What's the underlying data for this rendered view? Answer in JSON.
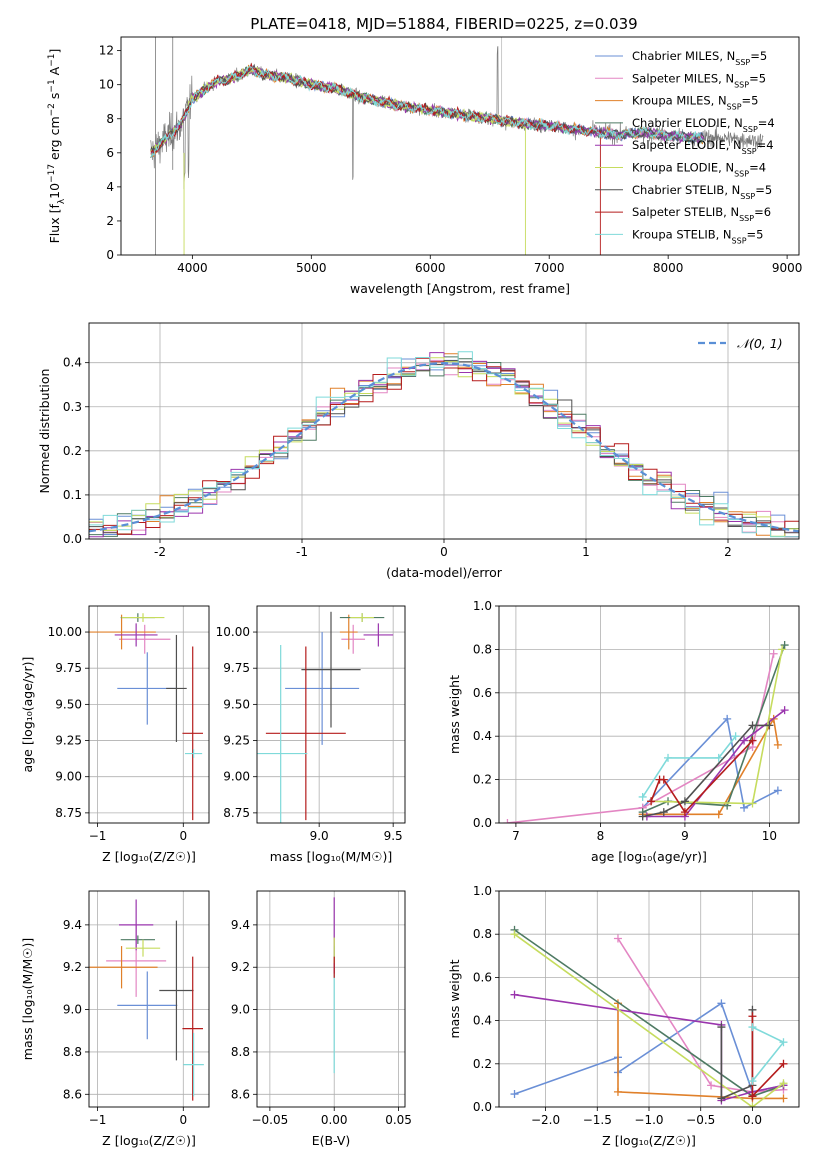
{
  "title": "PLATE=0418, MJD=51884, FIBERID=0225, z=0.039",
  "series": [
    {
      "name": "Chabrier MILES",
      "nssp": "5",
      "color": "#6a8fd6"
    },
    {
      "name": "Salpeter MILES",
      "nssp": "5",
      "color": "#e386c3"
    },
    {
      "name": "Kroupa MILES",
      "nssp": "5",
      "color": "#e0802a"
    },
    {
      "name": "Chabrier ELODIE",
      "nssp": "4",
      "color": "#4e7a63"
    },
    {
      "name": "Salpeter ELODIE",
      "nssp": "4",
      "color": "#9a35ad"
    },
    {
      "name": "Kroupa ELODIE",
      "nssp": "4",
      "color": "#c6dc5e"
    },
    {
      "name": "Chabrier STELIB",
      "nssp": "5",
      "color": "#505050"
    },
    {
      "name": "Salpeter STELIB",
      "nssp": "6",
      "color": "#b51c1c"
    },
    {
      "name": "Kroupa STELIB",
      "nssp": "5",
      "color": "#7fdada"
    }
  ],
  "chart_data": [
    {
      "id": "spectrum",
      "type": "line",
      "xlabel": "wavelength [Angstrom, rest frame]",
      "ylabel_parts": [
        "Flux [f",
        "λ",
        "10",
        "−17",
        " erg cm",
        "−2",
        " s",
        "−1",
        " A",
        "−1",
        "]"
      ],
      "xlim": [
        3400,
        9100
      ],
      "ylim": [
        0,
        12.8
      ],
      "xticks": [
        4000,
        5000,
        6000,
        7000,
        8000,
        9000
      ],
      "yticks": [
        0,
        2,
        4,
        6,
        8,
        10,
        12
      ],
      "data_x": [
        3650,
        3700,
        3800,
        3900,
        4000,
        4100,
        4200,
        4300,
        4400,
        4500,
        4600,
        4800,
        5000,
        5200,
        5400,
        5600,
        5800,
        6000,
        6200,
        6400,
        6600,
        6800,
        7000,
        7200,
        7400,
        7600,
        7800,
        8000,
        8200,
        8400,
        8600,
        8800
      ],
      "data_y": [
        6.0,
        6.3,
        7.0,
        7.6,
        9.2,
        9.7,
        10.2,
        10.3,
        10.6,
        10.9,
        10.6,
        10.4,
        10.0,
        9.8,
        9.3,
        9.0,
        8.7,
        8.5,
        8.3,
        8.1,
        7.9,
        7.7,
        7.6,
        7.4,
        7.2,
        7.05,
        7.2,
        7.0,
        6.9,
        6.9,
        6.8,
        6.7
      ],
      "model_extent": [
        3650,
        8300
      ],
      "grid": false,
      "legend": "top-right"
    },
    {
      "id": "residuals",
      "type": "histogram",
      "xlabel": "(data-model)/error",
      "ylabel": "Normed distribution",
      "xlim": [
        -2.5,
        2.5
      ],
      "ylim": [
        0,
        0.49
      ],
      "xticks": [
        -2,
        -1,
        0,
        1,
        2
      ],
      "yticks": [
        0.0,
        0.1,
        0.2,
        0.3,
        0.4
      ],
      "bin_width": 0.1,
      "reference_label": "𝒩(0, 1)",
      "reference_color": "#5a8fd6",
      "grid": true,
      "legend": "top-right"
    },
    {
      "id": "age_vs_z",
      "type": "errorbar",
      "xlabel": "Z [log₁₀(Z/Z☉)]",
      "ylabel": "age  [log₁₀(age/yr)]",
      "xlim": [
        -1.1,
        0.3
      ],
      "ylim": [
        8.68,
        10.18
      ],
      "xticks": [
        -1,
        0
      ],
      "xticklabels": [
        "−1",
        "0"
      ],
      "yticks": [
        8.75,
        9.0,
        9.25,
        9.5,
        9.75,
        10.0
      ],
      "points": [
        {
          "c": 0,
          "x": -0.42,
          "y": 9.61,
          "dx": 0.35,
          "dy": 0.25
        },
        {
          "c": 1,
          "x": -0.45,
          "y": 9.95,
          "dx": 0.3,
          "dy": 0.1
        },
        {
          "c": 2,
          "x": -0.72,
          "y": 10.0,
          "dx": 0.4,
          "dy": 0.12
        },
        {
          "c": 3,
          "x": -0.53,
          "y": 10.1,
          "dx": 0.2,
          "dy": 0.03
        },
        {
          "c": 4,
          "x": -0.55,
          "y": 9.98,
          "dx": 0.25,
          "dy": 0.08
        },
        {
          "c": 5,
          "x": -0.47,
          "y": 10.1,
          "dx": 0.25,
          "dy": 0.03
        },
        {
          "c": 6,
          "x": -0.08,
          "y": 9.61,
          "dx": 0.12,
          "dy": 0.37
        },
        {
          "c": 7,
          "x": 0.11,
          "y": 9.3,
          "dx": 0.12,
          "dy": 0.6
        },
        {
          "c": 8,
          "x": 0.12,
          "y": 9.16,
          "dx": 0.1,
          "dy": 0.03
        }
      ],
      "grid": true
    },
    {
      "id": "age_vs_mass",
      "type": "errorbar",
      "xlabel": "mass [log₁₀(M/M☉)]",
      "ylabel": "",
      "xlim": [
        8.58,
        9.58
      ],
      "ylim": [
        8.68,
        10.18
      ],
      "xticks": [
        9.0,
        9.5
      ],
      "xticklabels": [
        "9.0",
        "9.5"
      ],
      "yticks": [
        8.75,
        9.0,
        9.25,
        9.5,
        9.75,
        10.0
      ],
      "points": [
        {
          "c": 0,
          "x": 9.02,
          "y": 9.61,
          "dx": 0.25,
          "dy": 0.39
        },
        {
          "c": 1,
          "x": 9.23,
          "y": 9.95,
          "dx": 0.08,
          "dy": 0.1
        },
        {
          "c": 2,
          "x": 9.2,
          "y": 10.0,
          "dx": 0.06,
          "dy": 0.12
        },
        {
          "c": 3,
          "x": 9.29,
          "y": 10.1,
          "dx": 0.15,
          "dy": 0.03
        },
        {
          "c": 4,
          "x": 9.4,
          "y": 9.98,
          "dx": 0.1,
          "dy": 0.08
        },
        {
          "c": 5,
          "x": 9.29,
          "y": 10.1,
          "dx": 0.08,
          "dy": 0.03
        },
        {
          "c": 6,
          "x": 9.08,
          "y": 9.74,
          "dx": 0.2,
          "dy": 0.4
        },
        {
          "c": 7,
          "x": 8.91,
          "y": 9.3,
          "dx": 0.27,
          "dy": 0.6
        },
        {
          "c": 8,
          "x": 8.74,
          "y": 9.16,
          "dx": 0.18,
          "dy": 0.75
        }
      ],
      "grid": true
    },
    {
      "id": "weight_vs_age",
      "type": "line",
      "xlabel": "age  [log₁₀(age/yr)]",
      "ylabel": "mass weight",
      "xlim": [
        6.8,
        10.35
      ],
      "ylim": [
        0,
        1.0
      ],
      "xticks": [
        7,
        8,
        9,
        10
      ],
      "yticks": [
        0.0,
        0.2,
        0.4,
        0.6,
        0.8,
        1.0
      ],
      "lines": [
        {
          "c": 0,
          "pts": [
            [
              8.5,
              0.07
            ],
            [
              9.5,
              0.48
            ],
            [
              9.7,
              0.07
            ],
            [
              10.1,
              0.15
            ]
          ]
        },
        {
          "c": 1,
          "pts": [
            [
              6.9,
              0.0
            ],
            [
              8.5,
              0.07
            ],
            [
              9.8,
              0.35
            ],
            [
              10.05,
              0.78
            ]
          ]
        },
        {
          "c": 2,
          "pts": [
            [
              8.5,
              0.04
            ],
            [
              9.4,
              0.04
            ],
            [
              10.05,
              0.48
            ],
            [
              10.1,
              0.36
            ]
          ]
        },
        {
          "c": 3,
          "pts": [
            [
              8.5,
              0.05
            ],
            [
              8.8,
              0.1
            ],
            [
              9.5,
              0.08
            ],
            [
              10.18,
              0.82
            ]
          ]
        },
        {
          "c": 4,
          "pts": [
            [
              8.55,
              0.03
            ],
            [
              9.0,
              0.03
            ],
            [
              9.7,
              0.38
            ],
            [
              10.18,
              0.52
            ]
          ]
        },
        {
          "c": 5,
          "pts": [
            [
              8.6,
              0.1
            ],
            [
              9.8,
              0.09
            ],
            [
              10.15,
              0.8
            ]
          ]
        },
        {
          "c": 6,
          "pts": [
            [
              8.5,
              0.03
            ],
            [
              8.75,
              0.05
            ],
            [
              9.0,
              0.1
            ],
            [
              9.8,
              0.45
            ],
            [
              10.0,
              0.45
            ]
          ]
        },
        {
          "c": 7,
          "pts": [
            [
              8.6,
              0.1
            ],
            [
              8.7,
              0.2
            ],
            [
              8.75,
              0.2
            ],
            [
              9.0,
              0.05
            ],
            [
              9.8,
              0.38
            ]
          ]
        },
        {
          "c": 8,
          "pts": [
            [
              8.5,
              0.12
            ],
            [
              8.8,
              0.3
            ],
            [
              9.4,
              0.3
            ],
            [
              9.6,
              0.4
            ]
          ]
        }
      ],
      "grid": true
    },
    {
      "id": "mass_vs_z",
      "type": "errorbar",
      "xlabel": "Z [log₁₀(Z/Z☉)]",
      "ylabel": "mass [log₁₀(M/M☉)]",
      "xlim": [
        -1.1,
        0.3
      ],
      "ylim": [
        8.54,
        9.56
      ],
      "xticks": [
        -1,
        0
      ],
      "xticklabels": [
        "−1",
        "0"
      ],
      "yticks": [
        8.6,
        8.8,
        9.0,
        9.2,
        9.4
      ],
      "points": [
        {
          "c": 0,
          "x": -0.42,
          "y": 9.02,
          "dx": 0.35,
          "dy": 0.16
        },
        {
          "c": 1,
          "x": -0.55,
          "y": 9.23,
          "dx": 0.35,
          "dy": 0.17
        },
        {
          "c": 2,
          "x": -0.72,
          "y": 9.2,
          "dx": 0.42,
          "dy": 0.1
        },
        {
          "c": 3,
          "x": -0.53,
          "y": 9.33,
          "dx": 0.2,
          "dy": 0.02
        },
        {
          "c": 4,
          "x": -0.55,
          "y": 9.4,
          "dx": 0.2,
          "dy": 0.12
        },
        {
          "c": 5,
          "x": -0.47,
          "y": 9.29,
          "dx": 0.2,
          "dy": 0.04
        },
        {
          "c": 6,
          "x": -0.08,
          "y": 9.09,
          "dx": 0.2,
          "dy": 0.33
        },
        {
          "c": 7,
          "x": 0.11,
          "y": 8.91,
          "dx": 0.12,
          "dy": 0.34
        },
        {
          "c": 8,
          "x": 0.12,
          "y": 8.74,
          "dx": 0.12,
          "dy": 0.15
        }
      ],
      "grid": true
    },
    {
      "id": "mass_vs_ebv",
      "type": "errorbar",
      "xlabel": "E(B-V)",
      "ylabel": "",
      "xlim": [
        -0.06,
        0.055
      ],
      "ylim": [
        8.54,
        9.56
      ],
      "xticks": [
        -0.05,
        0.0,
        0.05
      ],
      "xticklabels": [
        "−0.05",
        "0.00",
        "0.05"
      ],
      "yticks": [
        8.6,
        8.8,
        9.0,
        9.2,
        9.4
      ],
      "points": [
        {
          "c": 8,
          "x": 0.0,
          "y": 9.0,
          "dx": 0.0,
          "dy": 0.3
        },
        {
          "c": 4,
          "x": 0.0,
          "y": 9.35,
          "dx": 0.0,
          "dy": 0.18
        },
        {
          "c": 5,
          "x": 0.0,
          "y": 9.28,
          "dx": 0.0,
          "dy": 0.06
        },
        {
          "c": 7,
          "x": 0.0,
          "y": 9.2,
          "dx": 0.0,
          "dy": 0.05
        }
      ],
      "grid": true
    },
    {
      "id": "weight_vs_z",
      "type": "line",
      "xlabel": "Z [log₁₀(Z/Z☉)]",
      "ylabel": "mass weight",
      "xlim": [
        -2.45,
        0.45
      ],
      "ylim": [
        0,
        1.0
      ],
      "xticks": [
        -2.0,
        -1.5,
        -1.0,
        -0.5,
        0.0
      ],
      "xticklabels": [
        "−2.0",
        "−1.5",
        "−1.0",
        "−0.5",
        "0.0"
      ],
      "yticks": [
        0.0,
        0.2,
        0.4,
        0.6,
        0.8,
        1.0
      ],
      "lines": [
        {
          "c": 0,
          "pts": [
            [
              -2.3,
              0.06
            ],
            [
              -1.3,
              0.23
            ],
            [
              -1.3,
              0.16
            ],
            [
              -0.3,
              0.48
            ],
            [
              0.0,
              0.07
            ],
            [
              0.3,
              0.1
            ]
          ]
        },
        {
          "c": 1,
          "pts": [
            [
              -1.3,
              0.78
            ],
            [
              -0.4,
              0.1
            ],
            [
              0.0,
              0.07
            ],
            [
              0.3,
              0.08
            ]
          ]
        },
        {
          "c": 2,
          "pts": [
            [
              -1.3,
              0.48
            ],
            [
              -1.3,
              0.07
            ],
            [
              0.0,
              0.04
            ],
            [
              0.3,
              0.04
            ]
          ]
        },
        {
          "c": 3,
          "pts": [
            [
              -2.3,
              0.82
            ],
            [
              0.0,
              0.05
            ],
            [
              0.3,
              0.1
            ]
          ]
        },
        {
          "c": 4,
          "pts": [
            [
              -2.3,
              0.52
            ],
            [
              -0.3,
              0.38
            ],
            [
              -0.3,
              0.03
            ],
            [
              0.0,
              0.07
            ],
            [
              0.3,
              0.1
            ]
          ]
        },
        {
          "c": 5,
          "pts": [
            [
              -2.3,
              0.8
            ],
            [
              0.0,
              0.0
            ],
            [
              0.3,
              0.11
            ]
          ]
        },
        {
          "c": 6,
          "pts": [
            [
              -0.3,
              0.37
            ],
            [
              -0.3,
              0.04
            ],
            [
              0.0,
              0.1
            ],
            [
              0.0,
              0.45
            ]
          ]
        },
        {
          "c": 7,
          "pts": [
            [
              0.0,
              0.42
            ],
            [
              0.0,
              0.05
            ],
            [
              0.3,
              0.2
            ],
            [
              0.0,
              0.05
            ]
          ]
        },
        {
          "c": 8,
          "pts": [
            [
              0.0,
              0.37
            ],
            [
              0.3,
              0.3
            ],
            [
              0.0,
              0.12
            ]
          ]
        }
      ],
      "grid": true
    }
  ]
}
